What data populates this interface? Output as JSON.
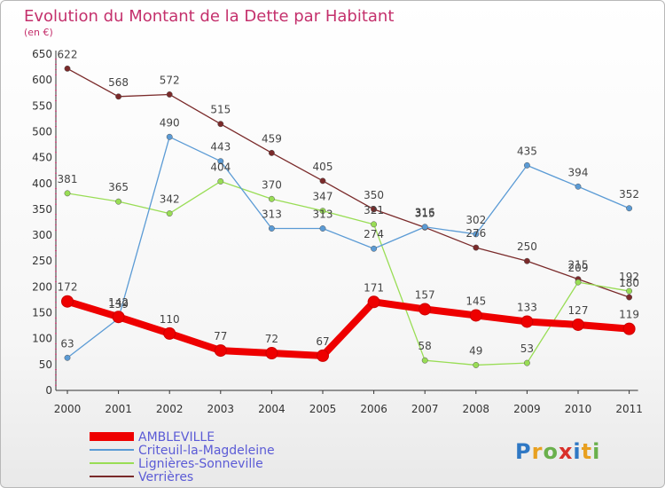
{
  "title": "Evolution du Montant de la Dette par Habitant",
  "subtitle": "(en €)",
  "logo": "Proxiti",
  "chart_data": {
    "type": "line",
    "title": "Evolution du Montant de la Dette par Habitant",
    "ylabel": "(en €)",
    "x": [
      "2000",
      "2001",
      "2002",
      "2003",
      "2004",
      "2005",
      "2006",
      "2007",
      "2008",
      "2009",
      "2010",
      "2011"
    ],
    "yticks": [
      0,
      50,
      100,
      150,
      200,
      250,
      300,
      350,
      400,
      450,
      500,
      550,
      600,
      650
    ],
    "ylim": [
      0,
      650
    ],
    "grid": false,
    "legend": "bottom-left",
    "series": [
      {
        "name": "AMBLEVILLE",
        "color": "#ee0000",
        "values": [
          172,
          142,
          110,
          77,
          72,
          67,
          171,
          157,
          145,
          133,
          127,
          119
        ]
      },
      {
        "name": "Criteuil-la-Magdeleine",
        "color": "#5b9bd5",
        "values": [
          63,
          139,
          490,
          443,
          313,
          313,
          274,
          316,
          302,
          435,
          394,
          352
        ]
      },
      {
        "name": "Lignières-Sonneville",
        "color": "#99dd55",
        "values": [
          381,
          365,
          342,
          404,
          370,
          347,
          321,
          58,
          49,
          53,
          209,
          192
        ]
      },
      {
        "name": "Verrières",
        "color": "#7a2a2a",
        "values": [
          622,
          568,
          572,
          515,
          459,
          405,
          350,
          315,
          276,
          250,
          215,
          180
        ]
      }
    ]
  }
}
